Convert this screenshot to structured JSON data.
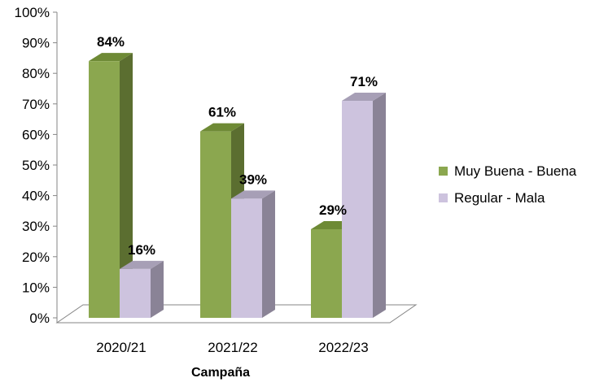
{
  "chart_data": {
    "type": "bar",
    "categories": [
      "2020/21",
      "2021/22",
      "2022/23"
    ],
    "series": [
      {
        "name": "Muy Buena - Buena",
        "values": [
          84,
          61,
          29
        ],
        "color": "#8BA74F",
        "side_color": "#5B6E30",
        "top_color": "#6E8A35"
      },
      {
        "name": "Regular - Mala",
        "values": [
          16,
          39,
          71
        ],
        "color": "#CDC3DE",
        "side_color": "#8A8396",
        "top_color": "#A79FB6"
      }
    ],
    "data_labels": [
      [
        "84%",
        "61%",
        "29%"
      ],
      [
        "16%",
        "39%",
        "71%"
      ]
    ],
    "y_ticks": [
      "0%",
      "10%",
      "20%",
      "30%",
      "40%",
      "50%",
      "60%",
      "70%",
      "80%",
      "90%",
      "100%"
    ],
    "ylim": [
      0,
      100
    ],
    "xlabel": "Campaña",
    "ylabel": "",
    "grid": false,
    "legend_position": "right",
    "three_d": true
  }
}
